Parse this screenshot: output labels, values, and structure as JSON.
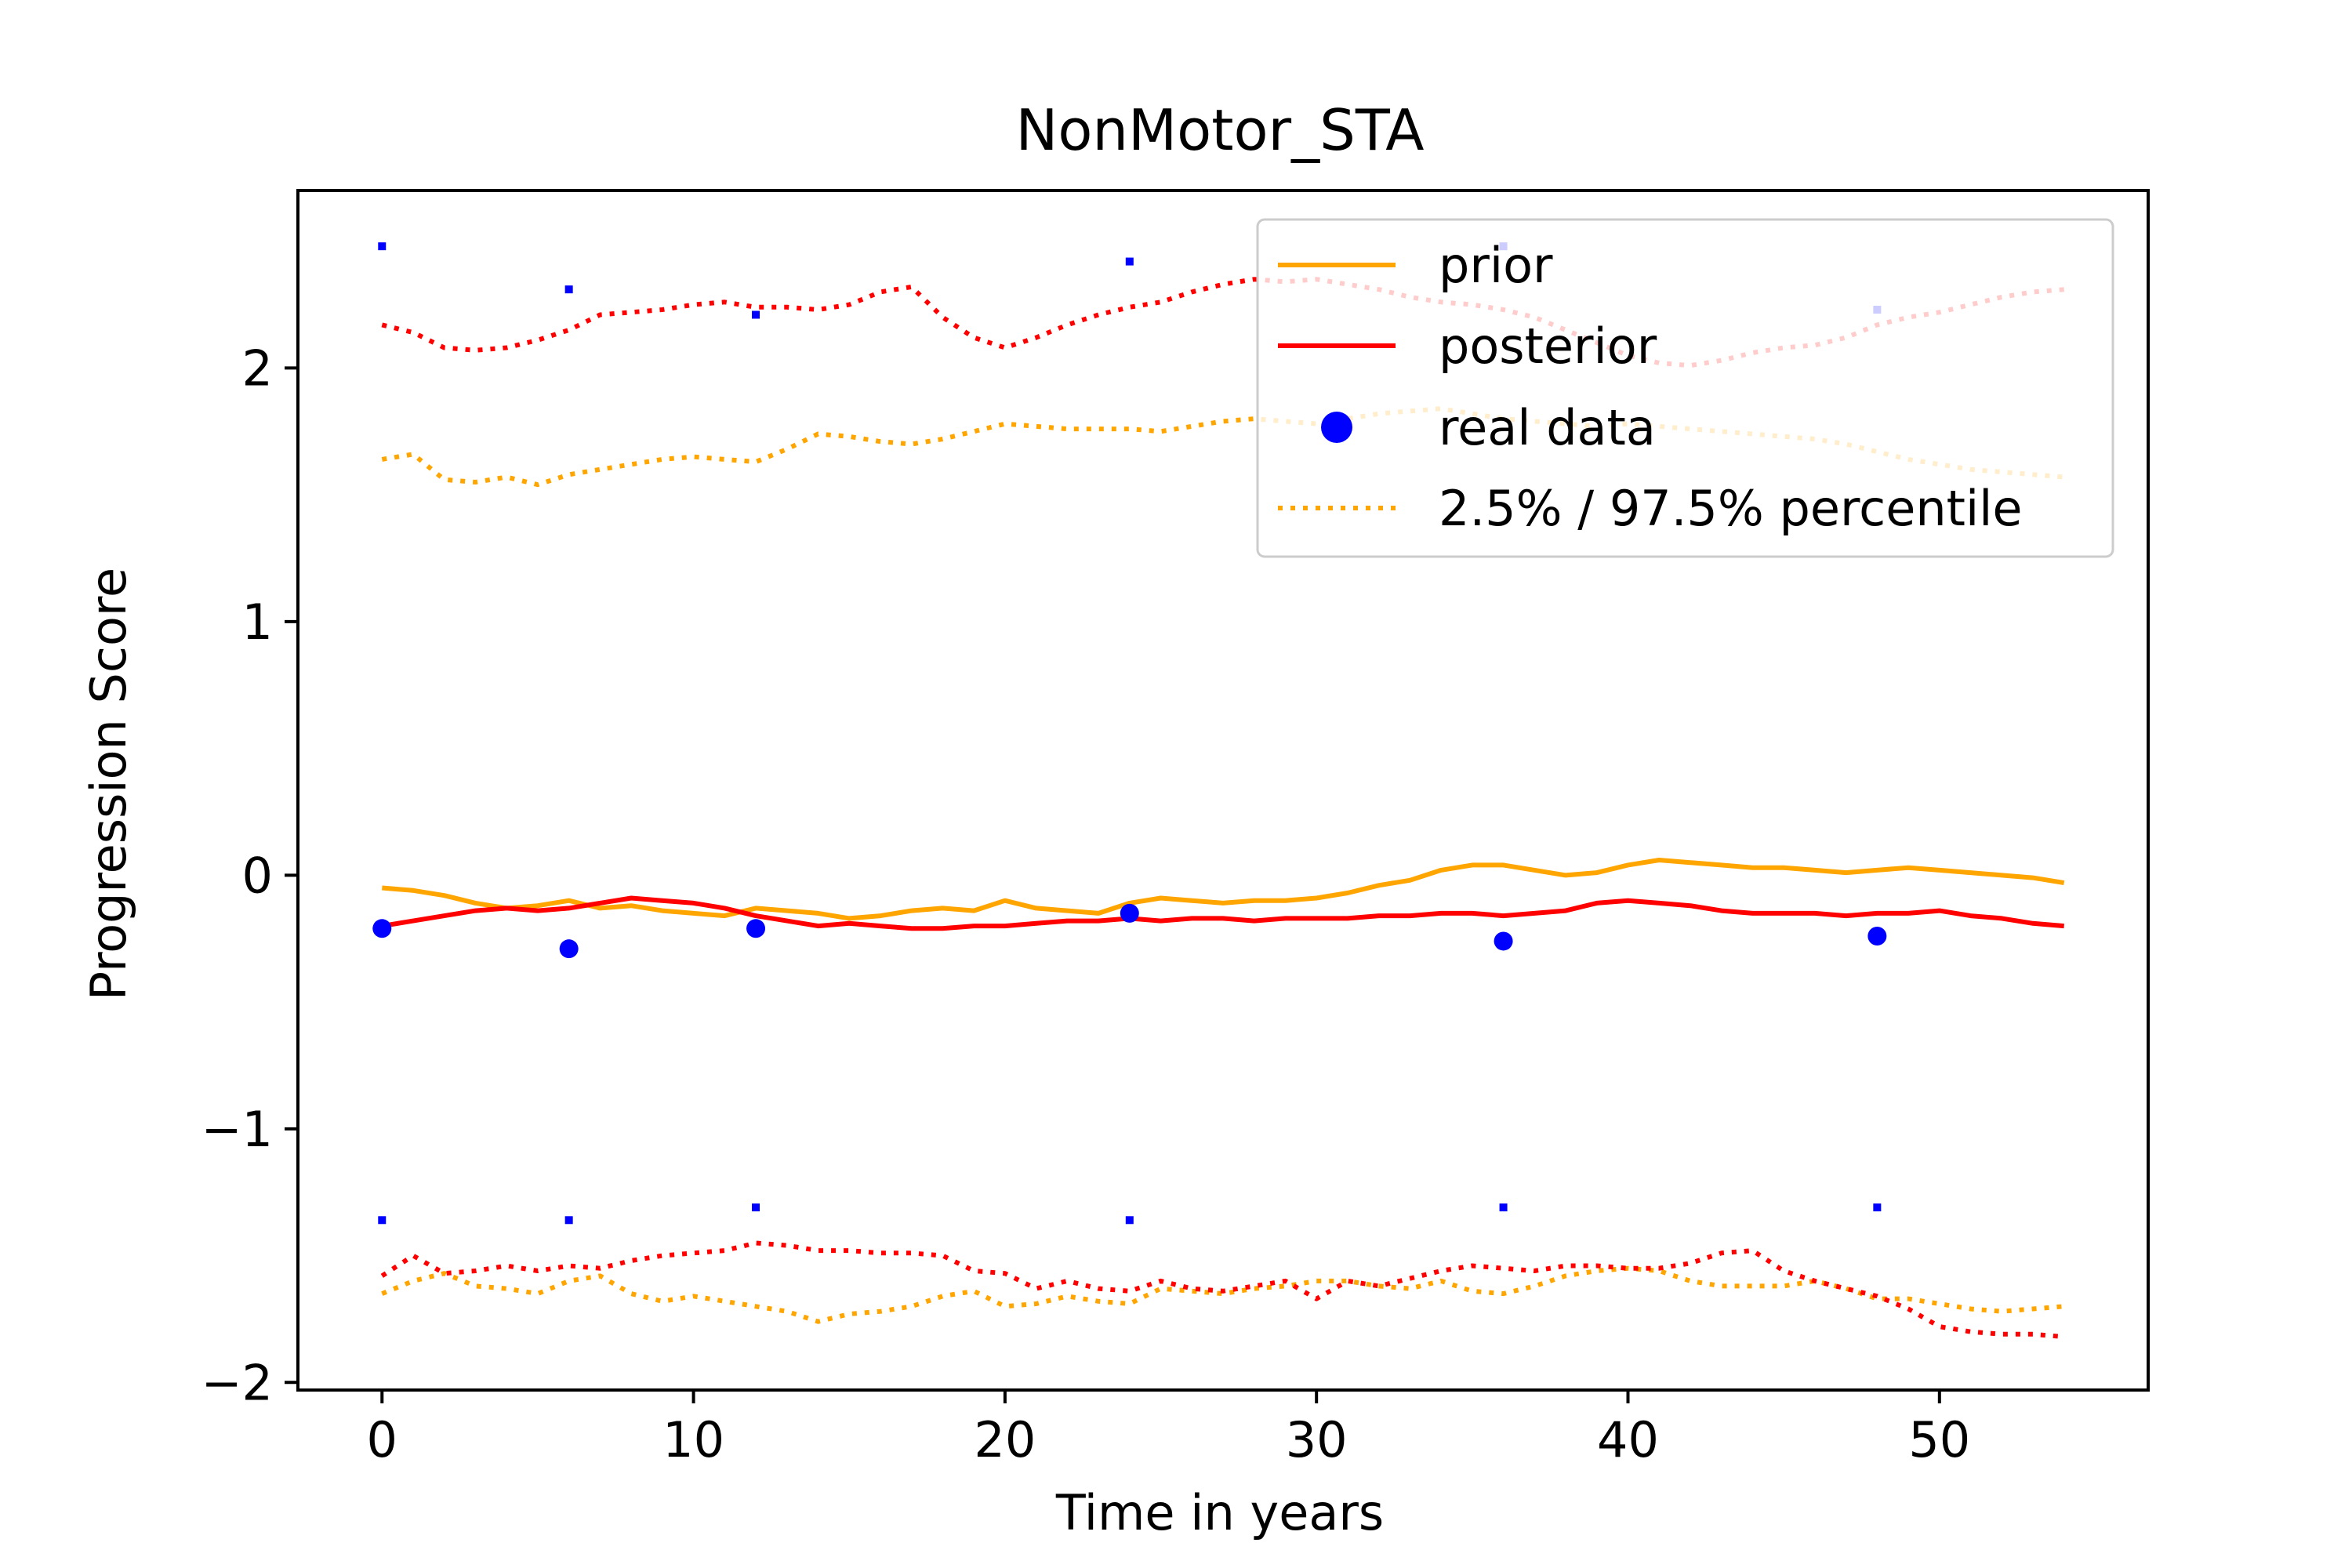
{
  "chart_data": {
    "type": "line",
    "title": "NonMotor_STA",
    "xlabel": "Time in years",
    "ylabel": "Progression Score",
    "xlim": [
      -2.7,
      56.7
    ],
    "ylim": [
      -2.03,
      2.7
    ],
    "xticks": [
      0,
      10,
      20,
      30,
      40,
      50
    ],
    "yticks": [
      -2,
      -1,
      0,
      1,
      2
    ],
    "ytick_labels": [
      "−2",
      "−1",
      "0",
      "1",
      "2"
    ],
    "grid": false,
    "legend_position": "upper-right",
    "legend": [
      {
        "label": "prior",
        "kind": "line",
        "color": "#FFA500"
      },
      {
        "label": "posterior",
        "kind": "line",
        "color": "#FF0000"
      },
      {
        "label": "real data",
        "kind": "marker",
        "color": "#0000FF"
      },
      {
        "label": "2.5% / 97.5% percentile",
        "kind": "dotted",
        "color": "#FFA500"
      }
    ],
    "series": [
      {
        "id": "prior-mean",
        "color": "#FFA500",
        "style": "solid",
        "x": [
          0,
          1,
          2,
          3,
          4,
          5,
          6,
          7,
          8,
          9,
          10,
          11,
          12,
          13,
          14,
          15,
          16,
          17,
          18,
          19,
          20,
          21,
          22,
          23,
          24,
          25,
          26,
          27,
          28,
          29,
          30,
          31,
          32,
          33,
          34,
          35,
          36,
          37,
          38,
          39,
          40,
          41,
          42,
          43,
          44,
          45,
          46,
          47,
          48,
          49,
          50,
          51,
          52,
          53,
          54
        ],
        "y": [
          -0.05,
          -0.06,
          -0.08,
          -0.11,
          -0.13,
          -0.12,
          -0.1,
          -0.13,
          -0.12,
          -0.14,
          -0.15,
          -0.16,
          -0.13,
          -0.14,
          -0.15,
          -0.17,
          -0.16,
          -0.14,
          -0.13,
          -0.14,
          -0.1,
          -0.13,
          -0.14,
          -0.15,
          -0.11,
          -0.09,
          -0.1,
          -0.11,
          -0.1,
          -0.1,
          -0.09,
          -0.07,
          -0.04,
          -0.02,
          0.02,
          0.04,
          0.04,
          0.02,
          0.0,
          0.01,
          0.04,
          0.06,
          0.05,
          0.04,
          0.03,
          0.03,
          0.02,
          0.01,
          0.02,
          0.03,
          0.02,
          0.01,
          0.0,
          -0.01,
          -0.03
        ]
      },
      {
        "id": "posterior-mean",
        "color": "#FF0000",
        "style": "solid",
        "x": [
          0,
          1,
          2,
          3,
          4,
          5,
          6,
          7,
          8,
          9,
          10,
          11,
          12,
          13,
          14,
          15,
          16,
          17,
          18,
          19,
          20,
          21,
          22,
          23,
          24,
          25,
          26,
          27,
          28,
          29,
          30,
          31,
          32,
          33,
          34,
          35,
          36,
          37,
          38,
          39,
          40,
          41,
          42,
          43,
          44,
          45,
          46,
          47,
          48,
          49,
          50,
          51,
          52,
          53,
          54
        ],
        "y": [
          -0.2,
          -0.18,
          -0.16,
          -0.14,
          -0.13,
          -0.14,
          -0.13,
          -0.11,
          -0.09,
          -0.1,
          -0.11,
          -0.13,
          -0.16,
          -0.18,
          -0.2,
          -0.19,
          -0.2,
          -0.21,
          -0.21,
          -0.2,
          -0.2,
          -0.19,
          -0.18,
          -0.18,
          -0.17,
          -0.18,
          -0.17,
          -0.17,
          -0.18,
          -0.17,
          -0.17,
          -0.17,
          -0.16,
          -0.16,
          -0.15,
          -0.15,
          -0.16,
          -0.15,
          -0.14,
          -0.11,
          -0.1,
          -0.11,
          -0.12,
          -0.14,
          -0.15,
          -0.15,
          -0.15,
          -0.16,
          -0.15,
          -0.15,
          -0.14,
          -0.16,
          -0.17,
          -0.19,
          -0.2
        ]
      },
      {
        "id": "prior-upper",
        "color": "#FFA500",
        "style": "dotted",
        "x": [
          0,
          1,
          2,
          3,
          4,
          5,
          6,
          7,
          8,
          9,
          10,
          11,
          12,
          13,
          14,
          15,
          16,
          17,
          18,
          19,
          20,
          21,
          22,
          23,
          24,
          25,
          26,
          27,
          28,
          29,
          30,
          31,
          32,
          33,
          34,
          35,
          36,
          37,
          38,
          39,
          40,
          41,
          42,
          43,
          44,
          45,
          46,
          47,
          48,
          49,
          50,
          51,
          52,
          53,
          54
        ],
        "y": [
          1.64,
          1.66,
          1.56,
          1.55,
          1.57,
          1.54,
          1.58,
          1.6,
          1.62,
          1.64,
          1.65,
          1.64,
          1.63,
          1.68,
          1.74,
          1.73,
          1.71,
          1.7,
          1.72,
          1.75,
          1.78,
          1.77,
          1.76,
          1.76,
          1.76,
          1.75,
          1.77,
          1.79,
          1.8,
          1.79,
          1.78,
          1.8,
          1.82,
          1.83,
          1.84,
          1.82,
          1.8,
          1.79,
          1.78,
          1.77,
          1.78,
          1.77,
          1.76,
          1.75,
          1.74,
          1.73,
          1.72,
          1.7,
          1.67,
          1.64,
          1.62,
          1.6,
          1.59,
          1.58,
          1.57
        ]
      },
      {
        "id": "prior-lower",
        "color": "#FFA500",
        "style": "dotted",
        "x": [
          0,
          1,
          2,
          3,
          4,
          5,
          6,
          7,
          8,
          9,
          10,
          11,
          12,
          13,
          14,
          15,
          16,
          17,
          18,
          19,
          20,
          21,
          22,
          23,
          24,
          25,
          26,
          27,
          28,
          29,
          30,
          31,
          32,
          33,
          34,
          35,
          36,
          37,
          38,
          39,
          40,
          41,
          42,
          43,
          44,
          45,
          46,
          47,
          48,
          49,
          50,
          51,
          52,
          53,
          54
        ],
        "y": [
          -1.65,
          -1.6,
          -1.57,
          -1.62,
          -1.63,
          -1.65,
          -1.6,
          -1.58,
          -1.65,
          -1.68,
          -1.66,
          -1.68,
          -1.7,
          -1.72,
          -1.76,
          -1.73,
          -1.72,
          -1.7,
          -1.66,
          -1.64,
          -1.7,
          -1.69,
          -1.66,
          -1.68,
          -1.69,
          -1.63,
          -1.64,
          -1.65,
          -1.63,
          -1.62,
          -1.6,
          -1.6,
          -1.62,
          -1.63,
          -1.6,
          -1.64,
          -1.65,
          -1.62,
          -1.58,
          -1.56,
          -1.55,
          -1.56,
          -1.6,
          -1.62,
          -1.62,
          -1.62,
          -1.6,
          -1.63,
          -1.67,
          -1.67,
          -1.69,
          -1.71,
          -1.72,
          -1.71,
          -1.7
        ]
      },
      {
        "id": "posterior-upper",
        "color": "#FF0000",
        "style": "dotted",
        "x": [
          0,
          1,
          2,
          3,
          4,
          5,
          6,
          7,
          8,
          9,
          10,
          11,
          12,
          13,
          14,
          15,
          16,
          17,
          18,
          19,
          20,
          21,
          22,
          23,
          24,
          25,
          26,
          27,
          28,
          29,
          30,
          31,
          32,
          33,
          34,
          35,
          36,
          37,
          38,
          39,
          40,
          41,
          42,
          43,
          44,
          45,
          46,
          47,
          48,
          49,
          50,
          51,
          52,
          53,
          54
        ],
        "y": [
          2.17,
          2.14,
          2.08,
          2.07,
          2.08,
          2.11,
          2.15,
          2.21,
          2.22,
          2.23,
          2.25,
          2.26,
          2.24,
          2.24,
          2.23,
          2.25,
          2.3,
          2.32,
          2.2,
          2.12,
          2.08,
          2.12,
          2.17,
          2.21,
          2.24,
          2.26,
          2.3,
          2.33,
          2.35,
          2.34,
          2.35,
          2.33,
          2.31,
          2.28,
          2.26,
          2.25,
          2.23,
          2.2,
          2.15,
          2.1,
          2.05,
          2.02,
          2.01,
          2.03,
          2.06,
          2.08,
          2.09,
          2.12,
          2.17,
          2.2,
          2.22,
          2.25,
          2.28,
          2.3,
          2.31
        ]
      },
      {
        "id": "posterior-lower",
        "color": "#FF0000",
        "style": "dotted",
        "x": [
          0,
          1,
          2,
          3,
          4,
          5,
          6,
          7,
          8,
          9,
          10,
          11,
          12,
          13,
          14,
          15,
          16,
          17,
          18,
          19,
          20,
          21,
          22,
          23,
          24,
          25,
          26,
          27,
          28,
          29,
          30,
          31,
          32,
          33,
          34,
          35,
          36,
          37,
          38,
          39,
          40,
          41,
          42,
          43,
          44,
          45,
          46,
          47,
          48,
          49,
          50,
          51,
          52,
          53,
          54
        ],
        "y": [
          -1.58,
          -1.5,
          -1.57,
          -1.56,
          -1.54,
          -1.56,
          -1.54,
          -1.55,
          -1.52,
          -1.5,
          -1.49,
          -1.48,
          -1.45,
          -1.46,
          -1.48,
          -1.48,
          -1.49,
          -1.49,
          -1.5,
          -1.56,
          -1.57,
          -1.63,
          -1.6,
          -1.63,
          -1.64,
          -1.6,
          -1.63,
          -1.64,
          -1.62,
          -1.6,
          -1.67,
          -1.6,
          -1.62,
          -1.59,
          -1.56,
          -1.54,
          -1.55,
          -1.56,
          -1.54,
          -1.54,
          -1.55,
          -1.55,
          -1.53,
          -1.49,
          -1.48,
          -1.56,
          -1.6,
          -1.63,
          -1.66,
          -1.71,
          -1.78,
          -1.8,
          -1.81,
          -1.81,
          -1.82
        ]
      }
    ],
    "real_data": {
      "color": "#0000FF",
      "x": [
        0,
        6,
        12,
        24,
        36,
        48
      ],
      "y": [
        -0.21,
        -0.29,
        -0.21,
        -0.15,
        -0.26,
        -0.24
      ]
    },
    "error_markers": {
      "color": "#0000FF",
      "x": [
        0,
        6,
        12,
        24,
        36,
        48
      ],
      "upper": [
        2.48,
        2.31,
        2.21,
        2.42,
        2.48,
        2.23
      ],
      "lower": [
        -1.36,
        -1.36,
        -1.31,
        -1.36,
        -1.31,
        -1.31
      ]
    }
  }
}
